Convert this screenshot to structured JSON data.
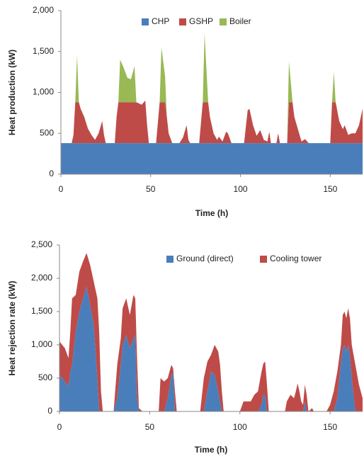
{
  "chart_data": [
    {
      "type": "stacked-area",
      "y_label": "Heat production (kW)",
      "x_label": "Time (h)",
      "x": [
        0,
        6,
        7,
        8,
        9,
        10,
        11,
        13,
        15,
        17,
        19,
        21,
        23,
        24,
        25,
        30,
        31,
        32,
        33,
        35,
        37,
        39,
        41,
        42,
        45,
        47,
        48,
        49,
        53,
        55,
        56,
        58,
        59,
        60,
        62,
        66,
        68,
        70,
        71,
        72,
        77,
        79,
        80,
        82,
        83,
        85,
        87,
        88,
        90,
        92,
        93,
        95,
        102,
        104,
        105,
        107,
        109,
        111,
        113,
        115,
        116,
        117,
        120,
        121,
        122,
        126,
        127,
        129,
        130,
        132,
        134,
        136,
        138,
        150,
        151,
        152,
        153,
        155,
        157,
        158,
        160,
        162,
        164,
        166,
        168
      ],
      "series": [
        {
          "name": "CHP",
          "color": "#4a7ebb",
          "values": [
            380,
            380,
            380,
            380,
            380,
            380,
            380,
            380,
            380,
            380,
            380,
            380,
            380,
            380,
            380,
            380,
            380,
            380,
            380,
            380,
            380,
            380,
            380,
            380,
            380,
            380,
            380,
            380,
            380,
            380,
            380,
            380,
            380,
            380,
            380,
            380,
            380,
            380,
            380,
            380,
            380,
            380,
            380,
            380,
            380,
            380,
            380,
            380,
            380,
            380,
            380,
            380,
            380,
            380,
            380,
            380,
            380,
            380,
            380,
            380,
            380,
            380,
            380,
            380,
            380,
            380,
            380,
            380,
            380,
            380,
            380,
            380,
            380,
            380,
            380,
            380,
            380,
            380,
            380,
            380,
            380,
            380,
            380,
            380,
            380
          ]
        },
        {
          "name": "GSHP",
          "color": "#be4b48",
          "values": [
            0,
            0,
            100,
            500,
            500,
            500,
            420,
            320,
            180,
            100,
            40,
            120,
            270,
            100,
            0,
            0,
            320,
            500,
            500,
            500,
            500,
            500,
            500,
            500,
            470,
            520,
            220,
            0,
            0,
            500,
            500,
            500,
            320,
            120,
            0,
            0,
            70,
            220,
            40,
            0,
            0,
            500,
            500,
            500,
            320,
            120,
            40,
            80,
            20,
            140,
            120,
            0,
            0,
            400,
            420,
            220,
            90,
            160,
            40,
            20,
            140,
            0,
            0,
            120,
            0,
            0,
            500,
            500,
            320,
            170,
            20,
            50,
            0,
            0,
            500,
            500,
            500,
            270,
            170,
            220,
            100,
            120,
            120,
            220,
            420
          ]
        },
        {
          "name": "Boiler",
          "color": "#98b954",
          "values": [
            0,
            0,
            0,
            0,
            570,
            0,
            0,
            0,
            0,
            0,
            0,
            0,
            0,
            0,
            0,
            0,
            0,
            0,
            520,
            420,
            300,
            280,
            440,
            0,
            0,
            0,
            0,
            0,
            0,
            0,
            670,
            320,
            0,
            0,
            0,
            0,
            0,
            0,
            0,
            0,
            0,
            0,
            840,
            0,
            0,
            0,
            0,
            0,
            0,
            0,
            0,
            0,
            0,
            0,
            0,
            0,
            0,
            0,
            0,
            0,
            0,
            0,
            0,
            0,
            0,
            0,
            500,
            0,
            0,
            0,
            0,
            0,
            0,
            0,
            0,
            370,
            0,
            0,
            0,
            0,
            0,
            0,
            0,
            0,
            0
          ]
        }
      ],
      "xlim": [
        0,
        168
      ],
      "xticks": [
        0,
        50,
        100,
        150
      ],
      "ylim": [
        0,
        2000
      ],
      "yticks": [
        0,
        500,
        {
          "value": 1000,
          "label": "1,000"
        },
        {
          "value": 1500,
          "label": "1,500"
        },
        {
          "value": 2000,
          "label": "2,000"
        }
      ],
      "legend": "top"
    },
    {
      "type": "stacked-area",
      "y_label": "Heat rejection rate (kW)",
      "x_label": "Time (h)",
      "x": [
        0,
        3,
        5,
        6,
        7,
        9,
        11,
        13,
        15,
        17,
        19,
        21,
        22,
        23,
        24,
        30,
        32,
        34,
        35,
        37,
        39,
        41,
        42,
        43,
        44,
        46,
        55,
        56,
        58,
        60,
        62,
        63,
        64,
        65,
        78,
        80,
        82,
        84,
        86,
        88,
        89,
        90,
        91,
        100,
        102,
        106,
        108,
        110,
        112,
        113,
        114,
        115,
        116,
        125,
        126,
        128,
        130,
        131,
        132,
        133,
        134,
        135,
        136,
        137,
        138,
        140,
        141,
        148,
        150,
        152,
        154,
        156,
        157,
        158,
        159,
        160,
        161,
        162,
        164,
        166,
        168
      ],
      "series": [
        {
          "name": "Ground (direct)",
          "color": "#4a7ebb",
          "values": [
            550,
            450,
            380,
            600,
            700,
            1200,
            1500,
            1700,
            1880,
            1600,
            1300,
            500,
            0,
            0,
            0,
            0,
            200,
            700,
            1000,
            1150,
            950,
            1100,
            1150,
            200,
            0,
            0,
            0,
            0,
            0,
            200,
            550,
            580,
            0,
            0,
            0,
            0,
            300,
            600,
            550,
            300,
            150,
            0,
            0,
            0,
            0,
            0,
            0,
            0,
            100,
            250,
            250,
            0,
            0,
            0,
            0,
            0,
            0,
            0,
            0,
            0,
            0,
            0,
            150,
            0,
            0,
            0,
            0,
            0,
            0,
            0,
            200,
            750,
            950,
            1000,
            900,
            1000,
            850,
            500,
            0,
            0,
            0
          ]
        },
        {
          "name": "Cooling tower",
          "color": "#be4b48",
          "values": [
            500,
            500,
            420,
            600,
            1000,
            550,
            600,
            550,
            500,
            600,
            650,
            1200,
            1200,
            300,
            0,
            0,
            500,
            400,
            550,
            550,
            500,
            650,
            550,
            600,
            50,
            0,
            0,
            500,
            450,
            300,
            150,
            70,
            300,
            0,
            0,
            500,
            450,
            250,
            450,
            600,
            550,
            300,
            0,
            0,
            150,
            150,
            250,
            300,
            500,
            470,
            500,
            400,
            0,
            0,
            150,
            250,
            200,
            300,
            420,
            300,
            150,
            100,
            250,
            250,
            0,
            50,
            0,
            0,
            100,
            300,
            400,
            250,
            500,
            500,
            500,
            550,
            550,
            500,
            700,
            400,
            200
          ]
        }
      ],
      "xlim": [
        0,
        168
      ],
      "xticks": [
        0,
        50,
        100,
        150
      ],
      "ylim": [
        0,
        2500
      ],
      "yticks": [
        0,
        500,
        {
          "value": 1000,
          "label": "1,000"
        },
        {
          "value": 1500,
          "label": "1,500"
        },
        {
          "value": 2000,
          "label": "2,000"
        },
        {
          "value": 2500,
          "label": "2,500"
        }
      ],
      "legend": "top"
    }
  ]
}
